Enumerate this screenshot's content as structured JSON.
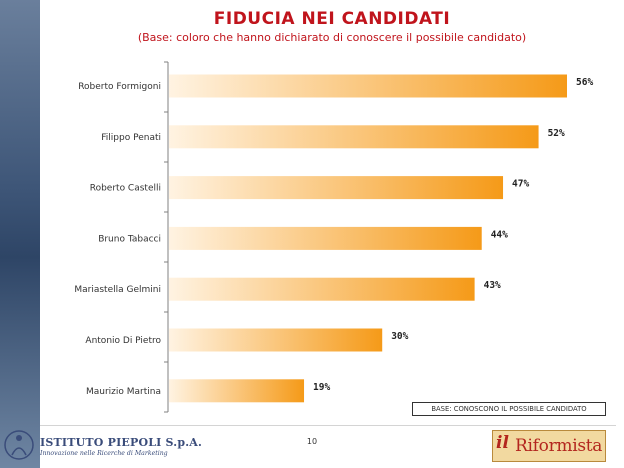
{
  "title": "FIDUCIA NEI CANDIDATI",
  "subtitle": "(Base: coloro che hanno dichiarato di conoscere il possibile candidato)",
  "base_note": "BASE: CONOSCONO IL POSSIBILE CANDIDATO",
  "page_number": "10",
  "footer": {
    "left_logo_name": "ISTITUTO PIEPOLI S.p.A.",
    "left_logo_tagline": "Innovazione nelle Ricerche di Marketing",
    "right_logo_il": "il",
    "right_logo_name": "Riformista"
  },
  "colors": {
    "title": "#c0141c",
    "bar_start": "#fff3e2",
    "bar_end": "#f59a18"
  },
  "chart_data": {
    "type": "bar",
    "orientation": "horizontal",
    "title": "FIDUCIA NEI CANDIDATI",
    "subtitle": "(Base: coloro che hanno dichiarato di conoscere il possibile candidato)",
    "categories": [
      "Roberto Formigoni",
      "Filippo Penati",
      "Roberto Castelli",
      "Bruno Tabacci",
      "Mariastella Gelmini",
      "Antonio Di Pietro",
      "Maurizio Martina"
    ],
    "values": [
      56,
      52,
      47,
      44,
      43,
      30,
      19
    ],
    "labels": [
      "56%",
      "52%",
      "47%",
      "44%",
      "43%",
      "30%",
      "19%"
    ],
    "unit": "%",
    "xlim": [
      0,
      60
    ],
    "grid": false,
    "legend": "none"
  }
}
